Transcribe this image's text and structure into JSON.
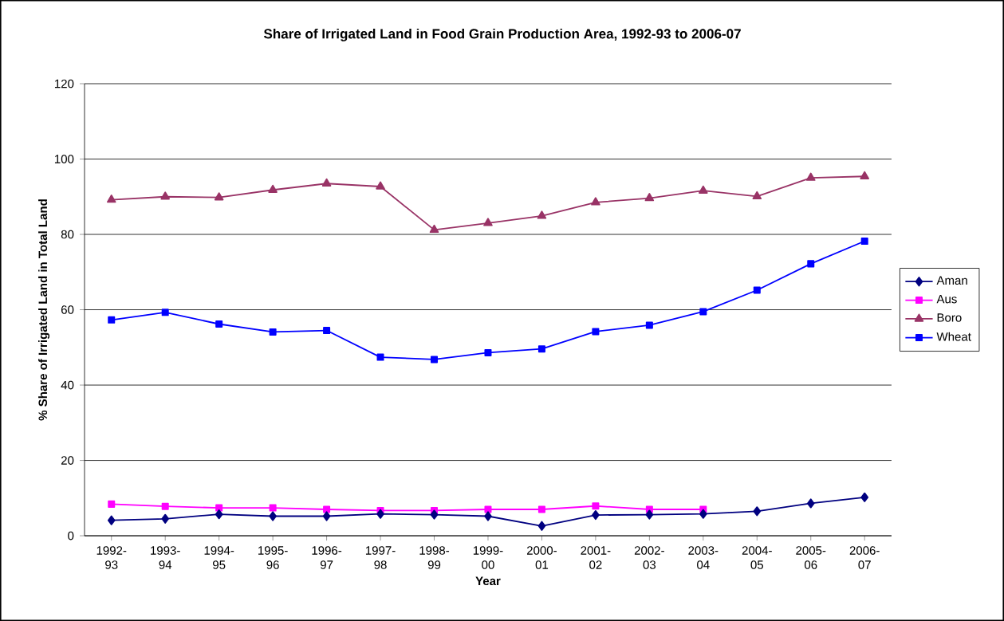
{
  "chart_data": {
    "type": "line",
    "title": "Share of Irrigated Land in Food Grain Production Area, 1992-93 to 2006-07",
    "xlabel": "Year",
    "ylabel": "% Share of Irrigated Land in Total Land",
    "categories": [
      "1992-93",
      "1993-94",
      "1994-95",
      "1995-96",
      "1996-97",
      "1997-98",
      "1998-99",
      "1999-00",
      "2000-01",
      "2001-02",
      "2002-03",
      "2003-04",
      "2004-05",
      "2005-06",
      "2006-07"
    ],
    "series": [
      {
        "name": "Aman",
        "color": "#000080",
        "marker": "diamond",
        "values": [
          4.1,
          4.5,
          5.7,
          5.2,
          5.2,
          5.8,
          5.6,
          5.2,
          2.6,
          5.5,
          5.6,
          5.8,
          6.5,
          8.6,
          10.2
        ]
      },
      {
        "name": "Aus",
        "color": "#ff00ff",
        "marker": "square",
        "values": [
          8.4,
          7.8,
          7.4,
          7.4,
          7.0,
          6.7,
          6.7,
          7.0,
          7.0,
          7.9,
          7.0,
          7.0,
          null,
          null,
          null
        ]
      },
      {
        "name": "Boro",
        "color": "#993366",
        "marker": "triangle",
        "values": [
          89.2,
          90.0,
          89.8,
          91.8,
          93.5,
          92.7,
          81.2,
          83.0,
          84.9,
          88.5,
          89.6,
          91.6,
          90.1,
          95.0,
          95.4
        ]
      },
      {
        "name": "Wheat",
        "color": "#0000ff",
        "marker": "square",
        "values": [
          57.3,
          59.3,
          56.2,
          54.1,
          54.5,
          47.4,
          46.8,
          48.6,
          49.6,
          54.2,
          55.9,
          59.5,
          65.2,
          72.2,
          78.2
        ]
      }
    ],
    "ylim": [
      0,
      120
    ],
    "yticks": [
      0,
      20,
      40,
      60,
      80,
      100,
      120
    ],
    "grid": "y",
    "legend": "right",
    "line_style": "solid"
  }
}
